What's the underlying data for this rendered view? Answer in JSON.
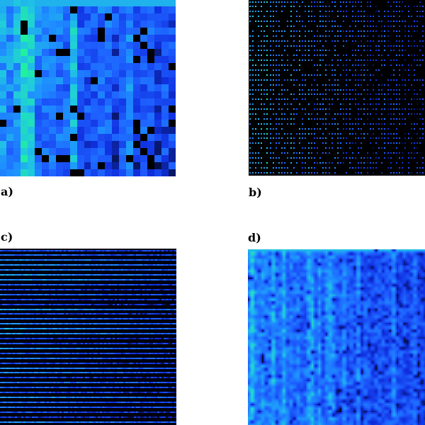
{
  "panels": [
    {
      "id": "a",
      "label": "a)",
      "style": "blocky",
      "columns": 25,
      "rows": 25
    },
    {
      "id": "b",
      "label": "b)",
      "style": "dotted",
      "columns": 60,
      "rows": 36
    },
    {
      "id": "c",
      "label": "c)",
      "style": "striped",
      "rows": 36
    },
    {
      "id": "d",
      "label": "d)",
      "style": "smooth",
      "columns": 50,
      "rows": 50
    }
  ],
  "colors": {
    "background": "#ffffff",
    "palette": [
      "#000000",
      "#1030e0",
      "#1e60ff",
      "#1e90ff",
      "#20c8e0",
      "#20f0a0"
    ]
  }
}
